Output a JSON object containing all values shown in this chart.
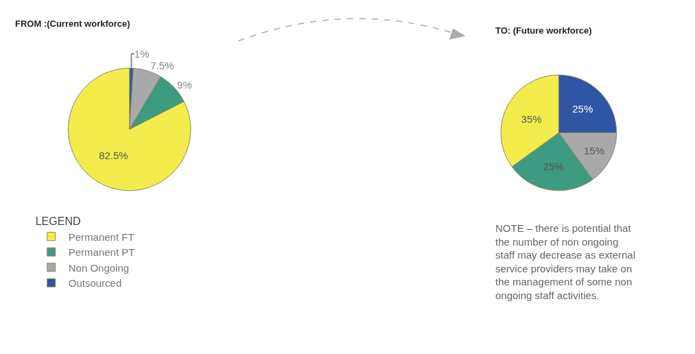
{
  "chart_data": [
    {
      "type": "pie",
      "title": "FROM :(Current workforce)",
      "legend_title": "LEGEND",
      "legend": "bottom left",
      "categories": [
        "Permanent FT",
        "Permanent PT",
        "Non Ongoing",
        "Outsourced"
      ],
      "values": [
        82.5,
        9,
        7.5,
        1
      ],
      "value_labels": [
        "82.5%",
        "9%",
        "7.5%",
        "1%"
      ],
      "colors": [
        "#f3ec4c",
        "#3e9a80",
        "#a9a9ab",
        "#2f55a3"
      ]
    },
    {
      "type": "pie",
      "title": "TO: (Future workforce)",
      "values": [
        35,
        25,
        15,
        25
      ],
      "value_labels": [
        "35%",
        "25%",
        "15%",
        "25%"
      ],
      "colors": [
        "#f3ec4c",
        "#3e9a80",
        "#a9a9ab",
        "#2f55a3"
      ],
      "annotations": [
        "NOTE – there is potential that the number of non ongoing staff may decrease as external service providers may take on the management of some non ongoing staff activities."
      ]
    }
  ]
}
